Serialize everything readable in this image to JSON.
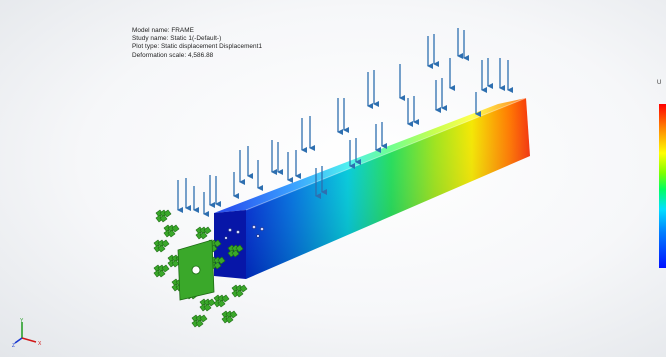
{
  "study_info": {
    "model_name": "Model name: FRAME",
    "study_name": "Study name: Static 1(-Default-)",
    "plot_type": "Plot type: Static displacement Displacement1",
    "deformation_scale": "Deformation scale: 4,586.88"
  },
  "legend": {
    "title": "U",
    "colors": [
      "#ff0000",
      "#ff7f00",
      "#ffff00",
      "#7fff00",
      "#00ff60",
      "#00e0ff",
      "#0080ff",
      "#0010ff"
    ]
  },
  "triad": {
    "x_axis": "X",
    "y_axis": "Y",
    "z_axis": "Z"
  },
  "colors": {
    "load_arrow": "#2e6fb0",
    "fixture": "#3aa82a",
    "background": "#f4f5f7"
  },
  "icons": [
    "load-arrow-icon",
    "fixed-geometry-icon",
    "coordinate-triad-icon"
  ]
}
